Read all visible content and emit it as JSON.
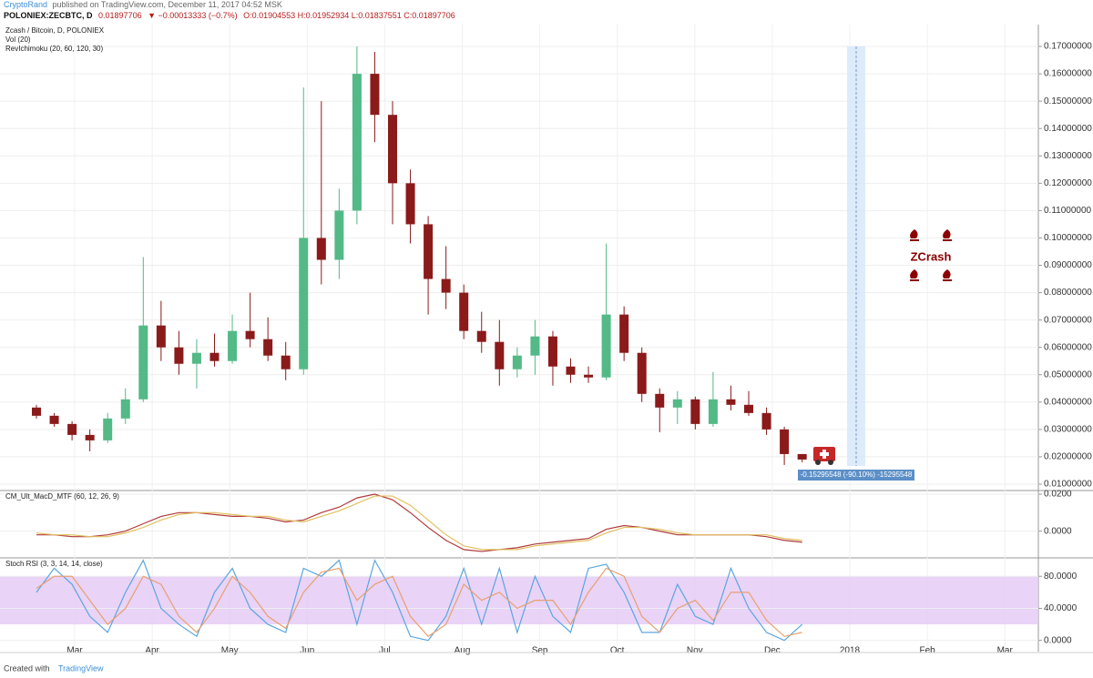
{
  "header": {
    "author": "CryptoRand",
    "published": "published on TradingView.com, December 11, 2017 04:52 MSK",
    "symbol": "POLONIEX:ZECBTC, D",
    "last": "0.01897706",
    "change": "▼ −0.00013333 (−0.7%)",
    "ohlc": "O:0.01904553 H:0.01952934 L:0.01837551 C:0.01897706"
  },
  "footer": {
    "created": "Created with",
    "brand": "TradingView"
  },
  "chart_data": [
    {
      "type": "candlestick",
      "title": "Zcash / Bitcoin, D, POLONIEX",
      "indicators": [
        "Vol (20)",
        "RevIchimoku (20, 60, 120, 30)"
      ],
      "open": [
        0.038,
        0.035,
        0.032,
        0.028,
        0.026,
        0.034,
        0.041,
        0.068,
        0.06,
        0.054,
        0.058,
        0.055,
        0.066,
        0.063,
        0.057,
        0.052,
        0.1,
        0.092,
        0.11,
        0.16,
        0.145,
        0.12,
        0.105,
        0.085,
        0.08,
        0.066,
        0.062,
        0.052,
        0.057,
        0.064,
        0.053,
        0.05,
        0.049,
        0.072,
        0.058,
        0.043,
        0.038,
        0.041,
        0.032,
        0.041,
        0.039,
        0.036,
        0.03,
        0.021
      ],
      "high": [
        0.039,
        0.036,
        0.033,
        0.03,
        0.036,
        0.045,
        0.093,
        0.077,
        0.066,
        0.063,
        0.065,
        0.072,
        0.08,
        0.071,
        0.062,
        0.155,
        0.15,
        0.118,
        0.17,
        0.168,
        0.15,
        0.125,
        0.108,
        0.097,
        0.083,
        0.073,
        0.07,
        0.06,
        0.07,
        0.066,
        0.056,
        0.053,
        0.098,
        0.075,
        0.06,
        0.045,
        0.044,
        0.042,
        0.051,
        0.046,
        0.044,
        0.038,
        0.031,
        0.021
      ],
      "low": [
        0.034,
        0.031,
        0.026,
        0.022,
        0.025,
        0.032,
        0.04,
        0.055,
        0.05,
        0.045,
        0.053,
        0.054,
        0.06,
        0.055,
        0.048,
        0.05,
        0.083,
        0.085,
        0.105,
        0.135,
        0.105,
        0.098,
        0.072,
        0.074,
        0.063,
        0.058,
        0.046,
        0.049,
        0.05,
        0.046,
        0.047,
        0.047,
        0.048,
        0.055,
        0.04,
        0.029,
        0.032,
        0.03,
        0.031,
        0.037,
        0.035,
        0.028,
        0.017,
        0.018
      ],
      "close": [
        0.035,
        0.032,
        0.028,
        0.026,
        0.034,
        0.041,
        0.068,
        0.06,
        0.054,
        0.058,
        0.055,
        0.066,
        0.063,
        0.057,
        0.052,
        0.1,
        0.092,
        0.11,
        0.16,
        0.145,
        0.12,
        0.105,
        0.085,
        0.08,
        0.066,
        0.062,
        0.052,
        0.057,
        0.064,
        0.053,
        0.05,
        0.049,
        0.072,
        0.058,
        0.043,
        0.038,
        0.041,
        0.032,
        0.041,
        0.039,
        0.036,
        0.03,
        0.021,
        0.019
      ],
      "up_color": "#53b987",
      "down_color": "#8b1a1a",
      "ylim": [
        0.008,
        0.178
      ],
      "yticks": [
        {
          "value": 0.01,
          "label": "0.01000000"
        },
        {
          "value": 0.02,
          "label": "0.02000000"
        },
        {
          "value": 0.03,
          "label": "0.03000000"
        },
        {
          "value": 0.04,
          "label": "0.04000000"
        },
        {
          "value": 0.05,
          "label": "0.05000000"
        },
        {
          "value": 0.06,
          "label": "0.06000000"
        },
        {
          "value": 0.07,
          "label": "0.07000000"
        },
        {
          "value": 0.08,
          "label": "0.08000000"
        },
        {
          "value": 0.09,
          "label": "0.09000000"
        },
        {
          "value": 0.1,
          "label": "0.10000000"
        },
        {
          "value": 0.11,
          "label": "0.11000000"
        },
        {
          "value": 0.12,
          "label": "0.12000000"
        },
        {
          "value": 0.13,
          "label": "0.13000000"
        },
        {
          "value": 0.14,
          "label": "0.14000000"
        },
        {
          "value": 0.15,
          "label": "0.15000000"
        },
        {
          "value": 0.16,
          "label": "0.16000000"
        },
        {
          "value": 0.17,
          "label": "0.17000000"
        }
      ],
      "x_labels": [
        "Mar",
        "Apr",
        "May",
        "Jun",
        "Jul",
        "Aug",
        "Sep",
        "Oct",
        "Nov",
        "Dec",
        "2018",
        "Feb",
        "Mar"
      ],
      "grid": true,
      "annotations": [
        "ZCrash",
        "-0.15295548 (-90.10%) -15295548"
      ]
    },
    {
      "type": "line",
      "title": "CM_Ult_MacD_MTF (60, 12, 26, 9)",
      "series": [
        {
          "color": "#b03a3a",
          "values": [
            -0.002,
            -0.002,
            -0.003,
            -0.003,
            -0.002,
            0.0,
            0.004,
            0.008,
            0.01,
            0.01,
            0.009,
            0.008,
            0.008,
            0.007,
            0.005,
            0.006,
            0.01,
            0.013,
            0.018,
            0.02,
            0.017,
            0.01,
            0.002,
            -0.005,
            -0.01,
            -0.011,
            -0.01,
            -0.009,
            -0.007,
            -0.006,
            -0.005,
            -0.004,
            0.001,
            0.003,
            0.002,
            0.0,
            -0.002,
            -0.002,
            -0.002,
            -0.002,
            -0.002,
            -0.003,
            -0.005,
            -0.006
          ]
        },
        {
          "color": "#e0c060",
          "values": [
            -0.001,
            -0.002,
            -0.002,
            -0.003,
            -0.003,
            -0.001,
            0.002,
            0.006,
            0.009,
            0.01,
            0.01,
            0.009,
            0.008,
            0.008,
            0.006,
            0.005,
            0.008,
            0.011,
            0.015,
            0.019,
            0.019,
            0.014,
            0.006,
            -0.002,
            -0.008,
            -0.01,
            -0.01,
            -0.01,
            -0.008,
            -0.007,
            -0.006,
            -0.005,
            -0.001,
            0.002,
            0.002,
            0.001,
            -0.001,
            -0.002,
            -0.002,
            -0.002,
            -0.002,
            -0.002,
            -0.004,
            -0.005
          ]
        }
      ],
      "ylim": [
        -0.014,
        0.022
      ],
      "yticks": [
        {
          "value": 0,
          "label": "0.0000"
        },
        {
          "value": 0.02,
          "label": "0.0200"
        }
      ]
    },
    {
      "type": "line",
      "title": "Stoch RSI (3, 3, 14, 14, close)",
      "series": [
        {
          "color": "#5aa6e0",
          "values": [
            60,
            90,
            70,
            30,
            10,
            60,
            100,
            40,
            20,
            5,
            60,
            90,
            40,
            20,
            10,
            90,
            80,
            100,
            20,
            100,
            60,
            5,
            0,
            30,
            90,
            20,
            90,
            10,
            80,
            30,
            10,
            90,
            95,
            60,
            10,
            10,
            70,
            30,
            20,
            90,
            40,
            10,
            0,
            20
          ]
        },
        {
          "color": "#e8a070",
          "values": [
            65,
            80,
            80,
            50,
            20,
            40,
            80,
            70,
            30,
            10,
            40,
            80,
            60,
            30,
            15,
            60,
            85,
            90,
            50,
            70,
            80,
            30,
            5,
            20,
            70,
            50,
            60,
            40,
            50,
            50,
            20,
            60,
            90,
            80,
            30,
            10,
            40,
            50,
            25,
            60,
            60,
            25,
            5,
            10
          ]
        }
      ],
      "band": [
        20,
        80
      ],
      "band_color": "#e4c8f5",
      "ylim": [
        -14,
        103
      ],
      "yticks": [
        {
          "value": 0,
          "label": "0.0000"
        },
        {
          "value": 40,
          "label": "40.0000"
        },
        {
          "value": 80,
          "label": "80.0000"
        }
      ]
    }
  ]
}
